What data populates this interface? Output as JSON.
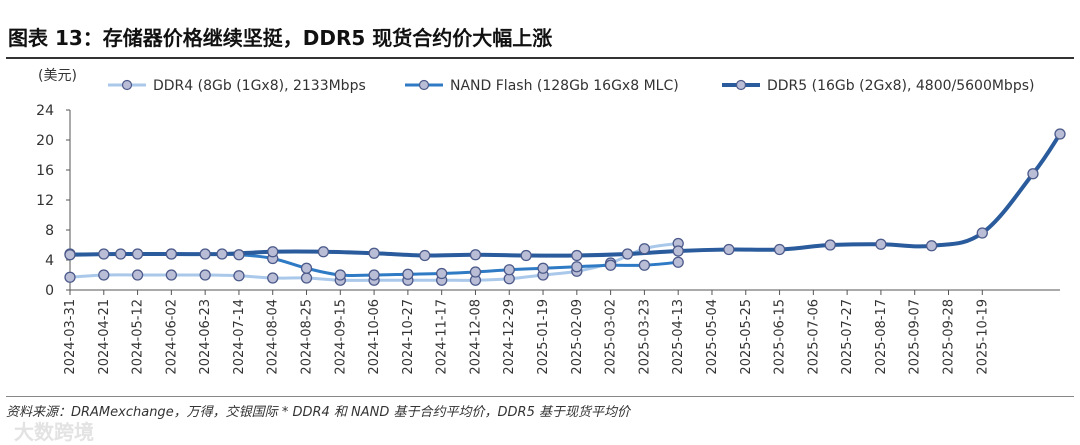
{
  "title": "图表 13：存储器价格继续坚挺，DDR5 现货合约价大幅上涨",
  "source": "资料来源：DRAMexchange，万得，交银国际    * DDR4 和 NAND 基于合约平均价，DDR5 基于现货平均价",
  "watermark": "大数跨境",
  "chart_data": {
    "type": "line",
    "title": "",
    "unit_label": "(美元)",
    "ylim": [
      0,
      24
    ],
    "yticks": [
      0,
      4,
      8,
      12,
      16,
      20,
      24
    ],
    "x_tick_labels": [
      "2024-03-31",
      "2024-04-21",
      "2024-05-12",
      "2024-06-02",
      "2024-06-23",
      "2024-07-14",
      "2024-08-04",
      "2024-08-25",
      "2024-09-15",
      "2024-10-06",
      "2024-10-27",
      "2024-11-17",
      "2024-12-08",
      "2024-12-29",
      "2025-01-19",
      "2025-02-09",
      "2025-03-02",
      "2025-03-23",
      "2025-04-13",
      "2025-05-04",
      "2025-05-25",
      "2025-06-15",
      "2025-07-06",
      "2025-07-27",
      "2025-08-17",
      "2025-09-07",
      "2025-09-28",
      "2025-10-19"
    ],
    "x_range": [
      0,
      28.5
    ],
    "legend_position": "top",
    "series": [
      {
        "name": "DDR4 (8Gb (1Gx8), 2133Mbps",
        "color": "#a9c8ea",
        "points": [
          [
            0,
            1.7
          ],
          [
            1,
            2.0
          ],
          [
            2,
            2.0
          ],
          [
            3,
            2.0
          ],
          [
            4,
            2.0
          ],
          [
            5,
            1.9
          ],
          [
            6,
            1.6
          ],
          [
            7,
            1.6
          ],
          [
            8,
            1.3
          ],
          [
            9,
            1.3
          ],
          [
            10,
            1.3
          ],
          [
            11,
            1.3
          ],
          [
            12,
            1.3
          ],
          [
            13,
            1.5
          ],
          [
            14,
            2.0
          ],
          [
            15,
            2.5
          ],
          [
            16,
            3.6
          ],
          [
            17,
            5.5
          ],
          [
            18,
            6.2
          ]
        ]
      },
      {
        "name": "NAND Flash (128Gb 16Gx8 MLC)",
        "color": "#2e7ac4",
        "points": [
          [
            0,
            4.8
          ],
          [
            1,
            4.8
          ],
          [
            2,
            4.8
          ],
          [
            3,
            4.8
          ],
          [
            4,
            4.8
          ],
          [
            5,
            4.7
          ],
          [
            6,
            4.2
          ],
          [
            7,
            2.9
          ],
          [
            8,
            2.0
          ],
          [
            9,
            2.0
          ],
          [
            10,
            2.1
          ],
          [
            11,
            2.2
          ],
          [
            12,
            2.4
          ],
          [
            13,
            2.7
          ],
          [
            14,
            2.9
          ],
          [
            15,
            3.1
          ],
          [
            16,
            3.3
          ],
          [
            17,
            3.3
          ],
          [
            18,
            3.7
          ]
        ]
      },
      {
        "name": "DDR5 (16Gb (2Gx8), 4800/5600Mbps)",
        "color": "#2a5b9c",
        "points": [
          [
            0,
            4.7
          ],
          [
            1.5,
            4.8
          ],
          [
            3,
            4.8
          ],
          [
            4.5,
            4.8
          ],
          [
            6,
            5.1
          ],
          [
            7.5,
            5.1
          ],
          [
            9,
            4.9
          ],
          [
            10.5,
            4.6
          ],
          [
            12,
            4.7
          ],
          [
            13.5,
            4.6
          ],
          [
            15,
            4.6
          ],
          [
            16.5,
            4.8
          ],
          [
            18,
            5.2
          ],
          [
            19.5,
            5.4
          ],
          [
            21,
            5.4
          ],
          [
            22.5,
            6.0
          ],
          [
            24,
            6.1
          ],
          [
            25.5,
            5.9
          ],
          [
            27,
            7.6
          ],
          [
            28.5,
            15.5
          ],
          [
            29.3,
            20.8
          ]
        ]
      }
    ]
  }
}
